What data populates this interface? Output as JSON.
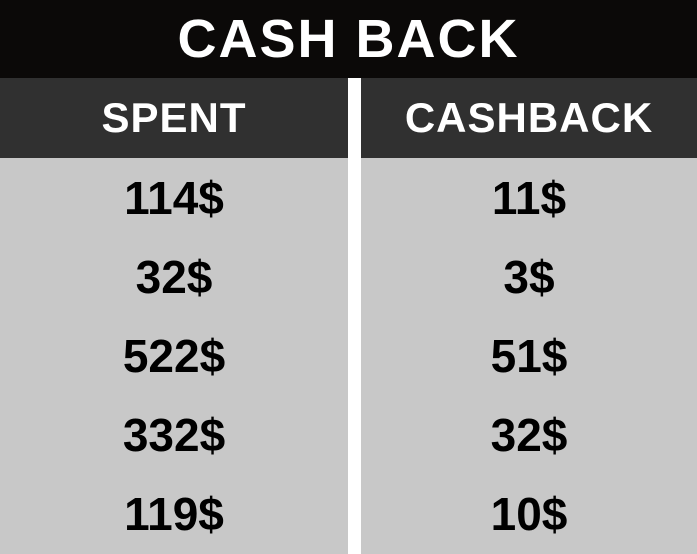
{
  "title": "CASH BACK",
  "chart_data": {
    "type": "table",
    "title": "CASH BACK",
    "columns": [
      "SPENT",
      "CASHBACK"
    ],
    "rows": [
      [
        "114$",
        "11$"
      ],
      [
        "32$",
        "3$"
      ],
      [
        "522$",
        "51$"
      ],
      [
        "332$",
        "32$"
      ],
      [
        "119$",
        "10$"
      ]
    ]
  },
  "colors": {
    "title_background": "#0b0908",
    "header_background": "#303030",
    "body_background": "#c8c8c8",
    "header_text": "#ffffff",
    "body_text": "#000000"
  }
}
